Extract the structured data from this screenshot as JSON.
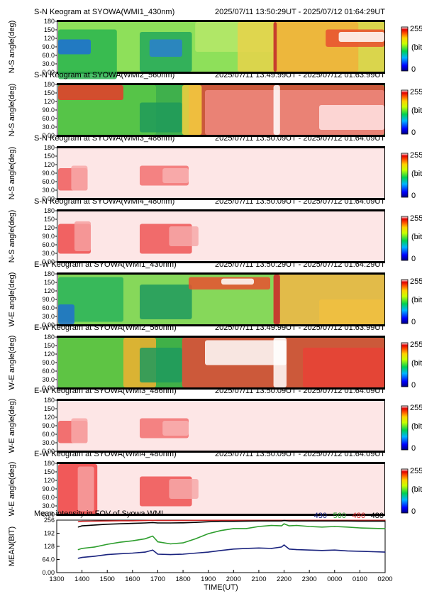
{
  "colors": {
    "c430": "#1a237e",
    "c560": "#2e9e2e",
    "c486": "#cc2222",
    "c480": "#000000"
  },
  "colorbar": {
    "max": "255",
    "unit": "(bit)",
    "min": "0"
  },
  "keograms": [
    {
      "title": "S-N Keogram at SYOWA(WMI1_430nm)",
      "time": "2025/07/11 13:50:29UT - 2025/07/12 01:64:29UT",
      "ylabel": "N-S angle(deg)",
      "scheme": "green430"
    },
    {
      "title": "S-N Keogram at SYOWA(WMI2_560nm)",
      "time": "2025/07/11 13:49:99UT - 2025/07/12 01:63:99UT",
      "ylabel": "N-S angle(deg)",
      "scheme": "red560sn"
    },
    {
      "title": "S-N Keogram at SYOWA(WMI3_486nm)",
      "time": "2025/07/11 13:50:09UT - 2025/07/12 01:64:09UT",
      "ylabel": "N-S angle(deg)",
      "scheme": "pink486"
    },
    {
      "title": "S-N Keogram at SYOWA(WMI4_480nm)",
      "time": "2025/07/11 13:50:09UT - 2025/07/12 01:64:09UT",
      "ylabel": "N-S angle(deg)",
      "scheme": "pink480"
    },
    {
      "title": "E-W Keogram at SYOWA(WMI1_430nm)",
      "time": "2025/07/11 13:50:29UT - 2025/07/12 01:64:29UT",
      "ylabel": "W-E angle(deg)",
      "scheme": "green430ew"
    },
    {
      "title": "E-W Keogram at SYOWA(WMI2_560nm)",
      "time": "2025/07/11 13:49:99UT - 2025/07/12 01:63:99UT",
      "ylabel": "W-E angle(deg)",
      "scheme": "red560ew"
    },
    {
      "title": "E-W Keogram at SYOWA(WMI3_486nm)",
      "time": "2025/07/11 13:50:09UT - 2025/07/12 01:64:09UT",
      "ylabel": "W-E angle(deg)",
      "scheme": "pink486"
    },
    {
      "title": "E-W Keogram at SYOWA(WMI4_480nm)",
      "time": "2025/07/11 13:50:09UT - 2025/07/12 01:64:09UT",
      "ylabel": "W-E angle(deg)",
      "scheme": "pink480ew"
    }
  ],
  "angle_ticks": [
    "0.00",
    "30.0",
    "60.0",
    "90.0",
    "120",
    "150",
    "180"
  ],
  "mean_panel": {
    "title": "Mean intensity in FOV of Syowa WMI",
    "ylabel": "MEAN(BIT)",
    "ytick_labels": [
      "0.00",
      "64.0",
      "128",
      "192",
      "256"
    ]
  },
  "chart_data": {
    "type": "line",
    "title": "Mean intensity in FOV of Syowa WMI",
    "xlabel": "TIME(UT)",
    "ylabel": "MEAN(BIT)",
    "x_tick_labels": [
      "1300",
      "1400",
      "1500",
      "1600",
      "1700",
      "1800",
      "1900",
      "2000",
      "2100",
      "2200",
      "2300",
      "0000",
      "0100",
      "0200"
    ],
    "x": [
      13.85,
      14.0,
      14.5,
      15.0,
      15.5,
      16.0,
      16.5,
      16.8,
      17.0,
      17.5,
      18.0,
      18.5,
      19.0,
      19.5,
      20.0,
      20.5,
      21.0,
      21.5,
      21.9,
      22.0,
      22.2,
      22.5,
      23.0,
      23.5,
      24.0,
      24.5,
      25.0,
      25.5,
      26.0
    ],
    "xlim": [
      13.0,
      26.0
    ],
    "ylim": [
      0,
      256
    ],
    "series": [
      {
        "name": "430",
        "color": "#1a237e",
        "values": [
          70,
          74,
          80,
          88,
          92,
          95,
          100,
          110,
          90,
          88,
          90,
          95,
          100,
          108,
          115,
          118,
          120,
          118,
          125,
          135,
          115,
          112,
          110,
          108,
          110,
          106,
          104,
          102,
          100
        ]
      },
      {
        "name": "560",
        "color": "#2e9e2e",
        "values": [
          112,
          118,
          125,
          138,
          148,
          155,
          165,
          178,
          150,
          140,
          145,
          165,
          190,
          205,
          215,
          215,
          225,
          230,
          228,
          238,
          228,
          230,
          225,
          222,
          225,
          222,
          218,
          216,
          214
        ]
      },
      {
        "name": "486",
        "color": "#cc2222",
        "values": [
          248,
          250,
          251,
          252,
          253,
          253,
          254,
          255,
          254,
          254,
          254,
          255,
          255,
          255,
          255,
          255,
          255,
          255,
          255,
          255,
          255,
          255,
          255,
          255,
          255,
          255,
          255,
          255,
          255
        ]
      },
      {
        "name": "480",
        "color": "#000000",
        "values": [
          222,
          228,
          232,
          236,
          238,
          240,
          242,
          244,
          242,
          242,
          243,
          245,
          248,
          250,
          250,
          251,
          252,
          252,
          252,
          254,
          252,
          252,
          252,
          252,
          252,
          252,
          251,
          251,
          251
        ]
      }
    ]
  }
}
